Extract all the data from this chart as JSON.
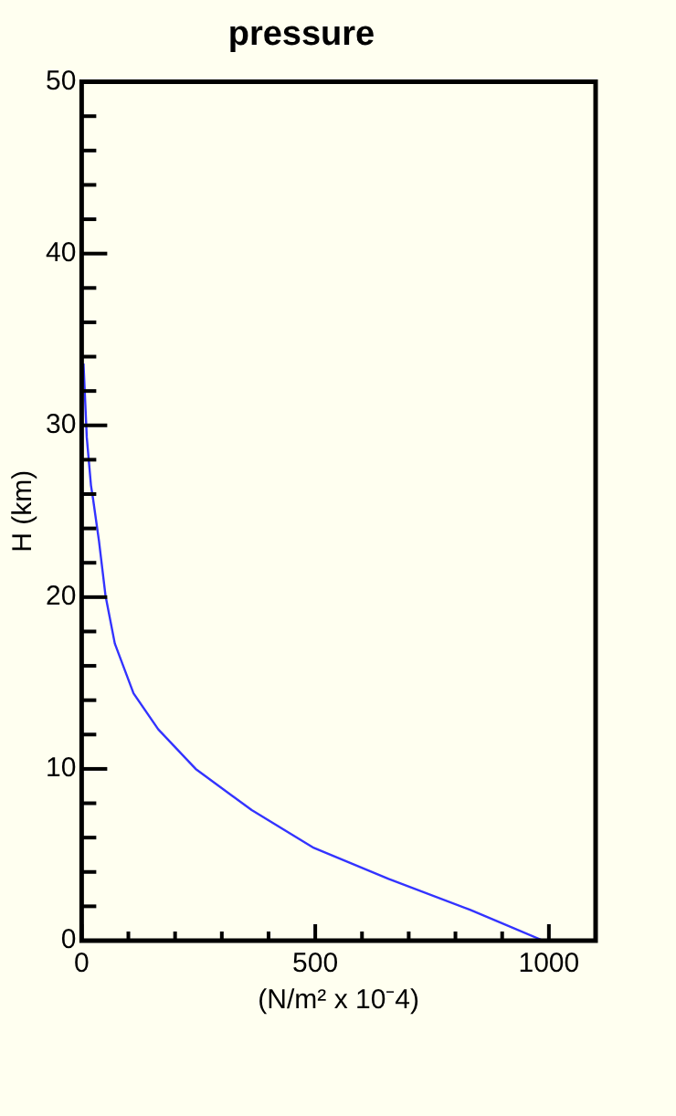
{
  "chart_data": {
    "type": "line",
    "title": "pressure",
    "xlabel": "(N/m² x 10⁻4)",
    "ylabel": "H (km)",
    "x": [
      988,
      831,
      657,
      497,
      364,
      244,
      164,
      111,
      71,
      51,
      37,
      24,
      20,
      11,
      4
    ],
    "series": [
      {
        "color": "#3333ff",
        "values": [
          0,
          1.8,
          3.6,
          5.4,
          7.6,
          10.0,
          12.3,
          14.4,
          17.3,
          20.1,
          23.3,
          25.8,
          26.5,
          29.3,
          33.6
        ]
      }
    ],
    "xlim": [
      0,
      1100
    ],
    "xticks": [
      0,
      {
        "value": 100,
        "label": null
      },
      {
        "value": 200,
        "label": null
      },
      {
        "value": 300,
        "label": null
      },
      {
        "value": 400,
        "label": null
      },
      500,
      {
        "value": 600,
        "label": null
      },
      {
        "value": 700,
        "label": null
      },
      {
        "value": 800,
        "label": null
      },
      {
        "value": 900,
        "label": null
      },
      1000
    ],
    "ylim": [
      0,
      50
    ],
    "yticks": [
      0,
      {
        "value": 2,
        "label": null
      },
      {
        "value": 4,
        "label": null
      },
      {
        "value": 6,
        "label": null
      },
      {
        "value": 8,
        "label": null
      },
      10,
      {
        "value": 12,
        "label": null
      },
      {
        "value": 14,
        "label": null
      },
      {
        "value": 16,
        "label": null
      },
      {
        "value": 18,
        "label": null
      },
      20,
      {
        "value": 22,
        "label": null
      },
      {
        "value": 24,
        "label": null
      },
      {
        "value": 26,
        "label": null
      },
      {
        "value": 28,
        "label": null
      },
      30,
      {
        "value": 32,
        "label": null
      },
      {
        "value": 34,
        "label": null
      },
      {
        "value": 36,
        "label": null
      },
      {
        "value": 38,
        "label": null
      },
      40,
      {
        "value": 42,
        "label": null
      },
      {
        "value": 44,
        "label": null
      },
      {
        "value": 46,
        "label": null
      },
      {
        "value": 48,
        "label": null
      },
      50
    ],
    "grid": false,
    "legend": false,
    "marker": "none",
    "line_style": "solid"
  }
}
